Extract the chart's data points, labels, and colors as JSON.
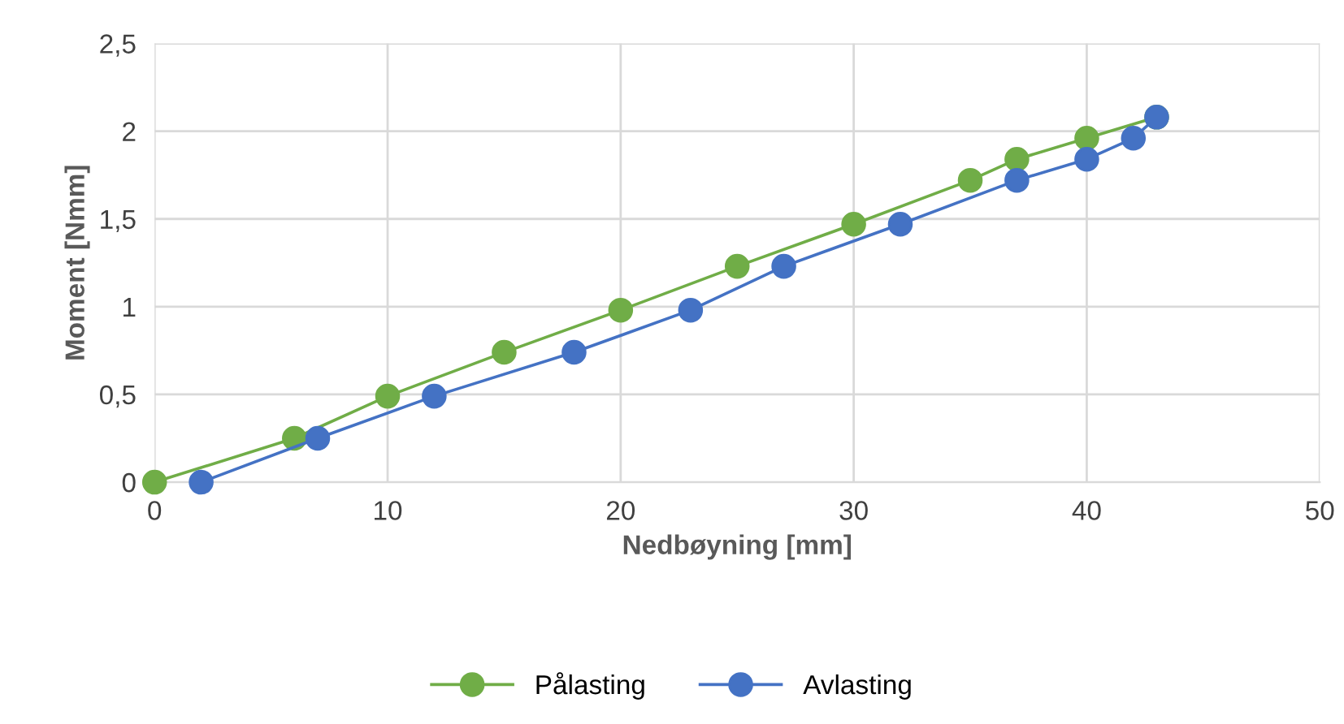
{
  "chart_data": {
    "type": "line",
    "xlabel": "Nedbøyning [mm]",
    "ylabel": "Moment [Nmm]",
    "xlim": [
      0,
      50
    ],
    "xticks": [
      0,
      10,
      20,
      30,
      40,
      50
    ],
    "ylim": [
      0,
      2.5
    ],
    "yticks": [
      0,
      {
        "value": 0.5,
        "label": "0,5"
      },
      1,
      {
        "value": 1.5,
        "label": "1,5"
      },
      2,
      {
        "value": 2.5,
        "label": "2,5"
      }
    ],
    "grid": true,
    "legend": "bottom",
    "marker": "circle",
    "line_style": "solid",
    "series": [
      {
        "name": "Pålasting",
        "color": "#70ad47",
        "x": [
          0,
          6,
          10,
          15,
          20,
          25,
          30,
          35,
          37,
          40,
          43
        ],
        "values": [
          0,
          0.25,
          0.49,
          0.74,
          0.98,
          1.23,
          1.47,
          1.72,
          1.84,
          1.96,
          2.08
        ]
      },
      {
        "name": "Avlasting",
        "color": "#4472c4",
        "x": [
          2,
          7,
          12,
          18,
          23,
          27,
          32,
          37,
          40,
          42,
          43
        ],
        "values": [
          0,
          0.25,
          0.49,
          0.74,
          0.98,
          1.23,
          1.47,
          1.72,
          1.84,
          1.96,
          2.08
        ]
      }
    ]
  }
}
